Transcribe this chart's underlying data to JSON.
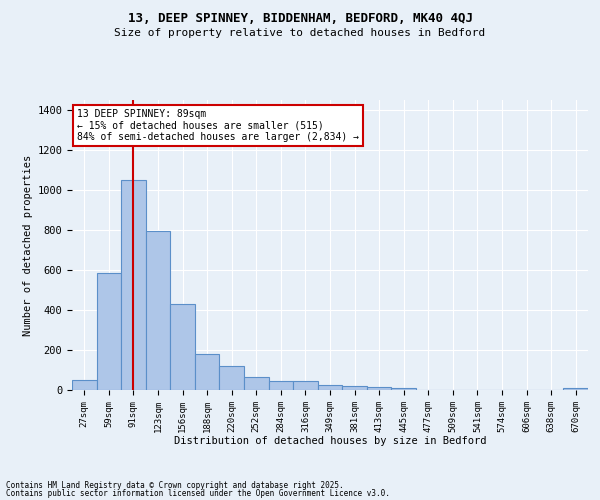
{
  "title1": "13, DEEP SPINNEY, BIDDENHAM, BEDFORD, MK40 4QJ",
  "title2": "Size of property relative to detached houses in Bedford",
  "xlabel": "Distribution of detached houses by size in Bedford",
  "ylabel": "Number of detached properties",
  "bar_labels": [
    "27sqm",
    "59sqm",
    "91sqm",
    "123sqm",
    "156sqm",
    "188sqm",
    "220sqm",
    "252sqm",
    "284sqm",
    "316sqm",
    "349sqm",
    "381sqm",
    "413sqm",
    "445sqm",
    "477sqm",
    "509sqm",
    "541sqm",
    "574sqm",
    "606sqm",
    "638sqm",
    "670sqm"
  ],
  "bar_values": [
    50,
    585,
    1050,
    795,
    430,
    180,
    120,
    65,
    45,
    45,
    25,
    22,
    15,
    10,
    0,
    0,
    0,
    0,
    0,
    0,
    12
  ],
  "bar_color": "#aec6e8",
  "bar_edge_color": "#5b8fc9",
  "background_color": "#e8f0f8",
  "grid_color": "#ffffff",
  "red_line_x": 2.0,
  "red_line_color": "#cc0000",
  "annotation_text": "13 DEEP SPINNEY: 89sqm\n← 15% of detached houses are smaller (515)\n84% of semi-detached houses are larger (2,834) →",
  "annotation_box_color": "#ffffff",
  "annotation_box_edge": "#cc0000",
  "footnote1": "Contains HM Land Registry data © Crown copyright and database right 2025.",
  "footnote2": "Contains public sector information licensed under the Open Government Licence v3.0.",
  "ylim": [
    0,
    1450
  ],
  "yticks": [
    0,
    200,
    400,
    600,
    800,
    1000,
    1200,
    1400
  ]
}
